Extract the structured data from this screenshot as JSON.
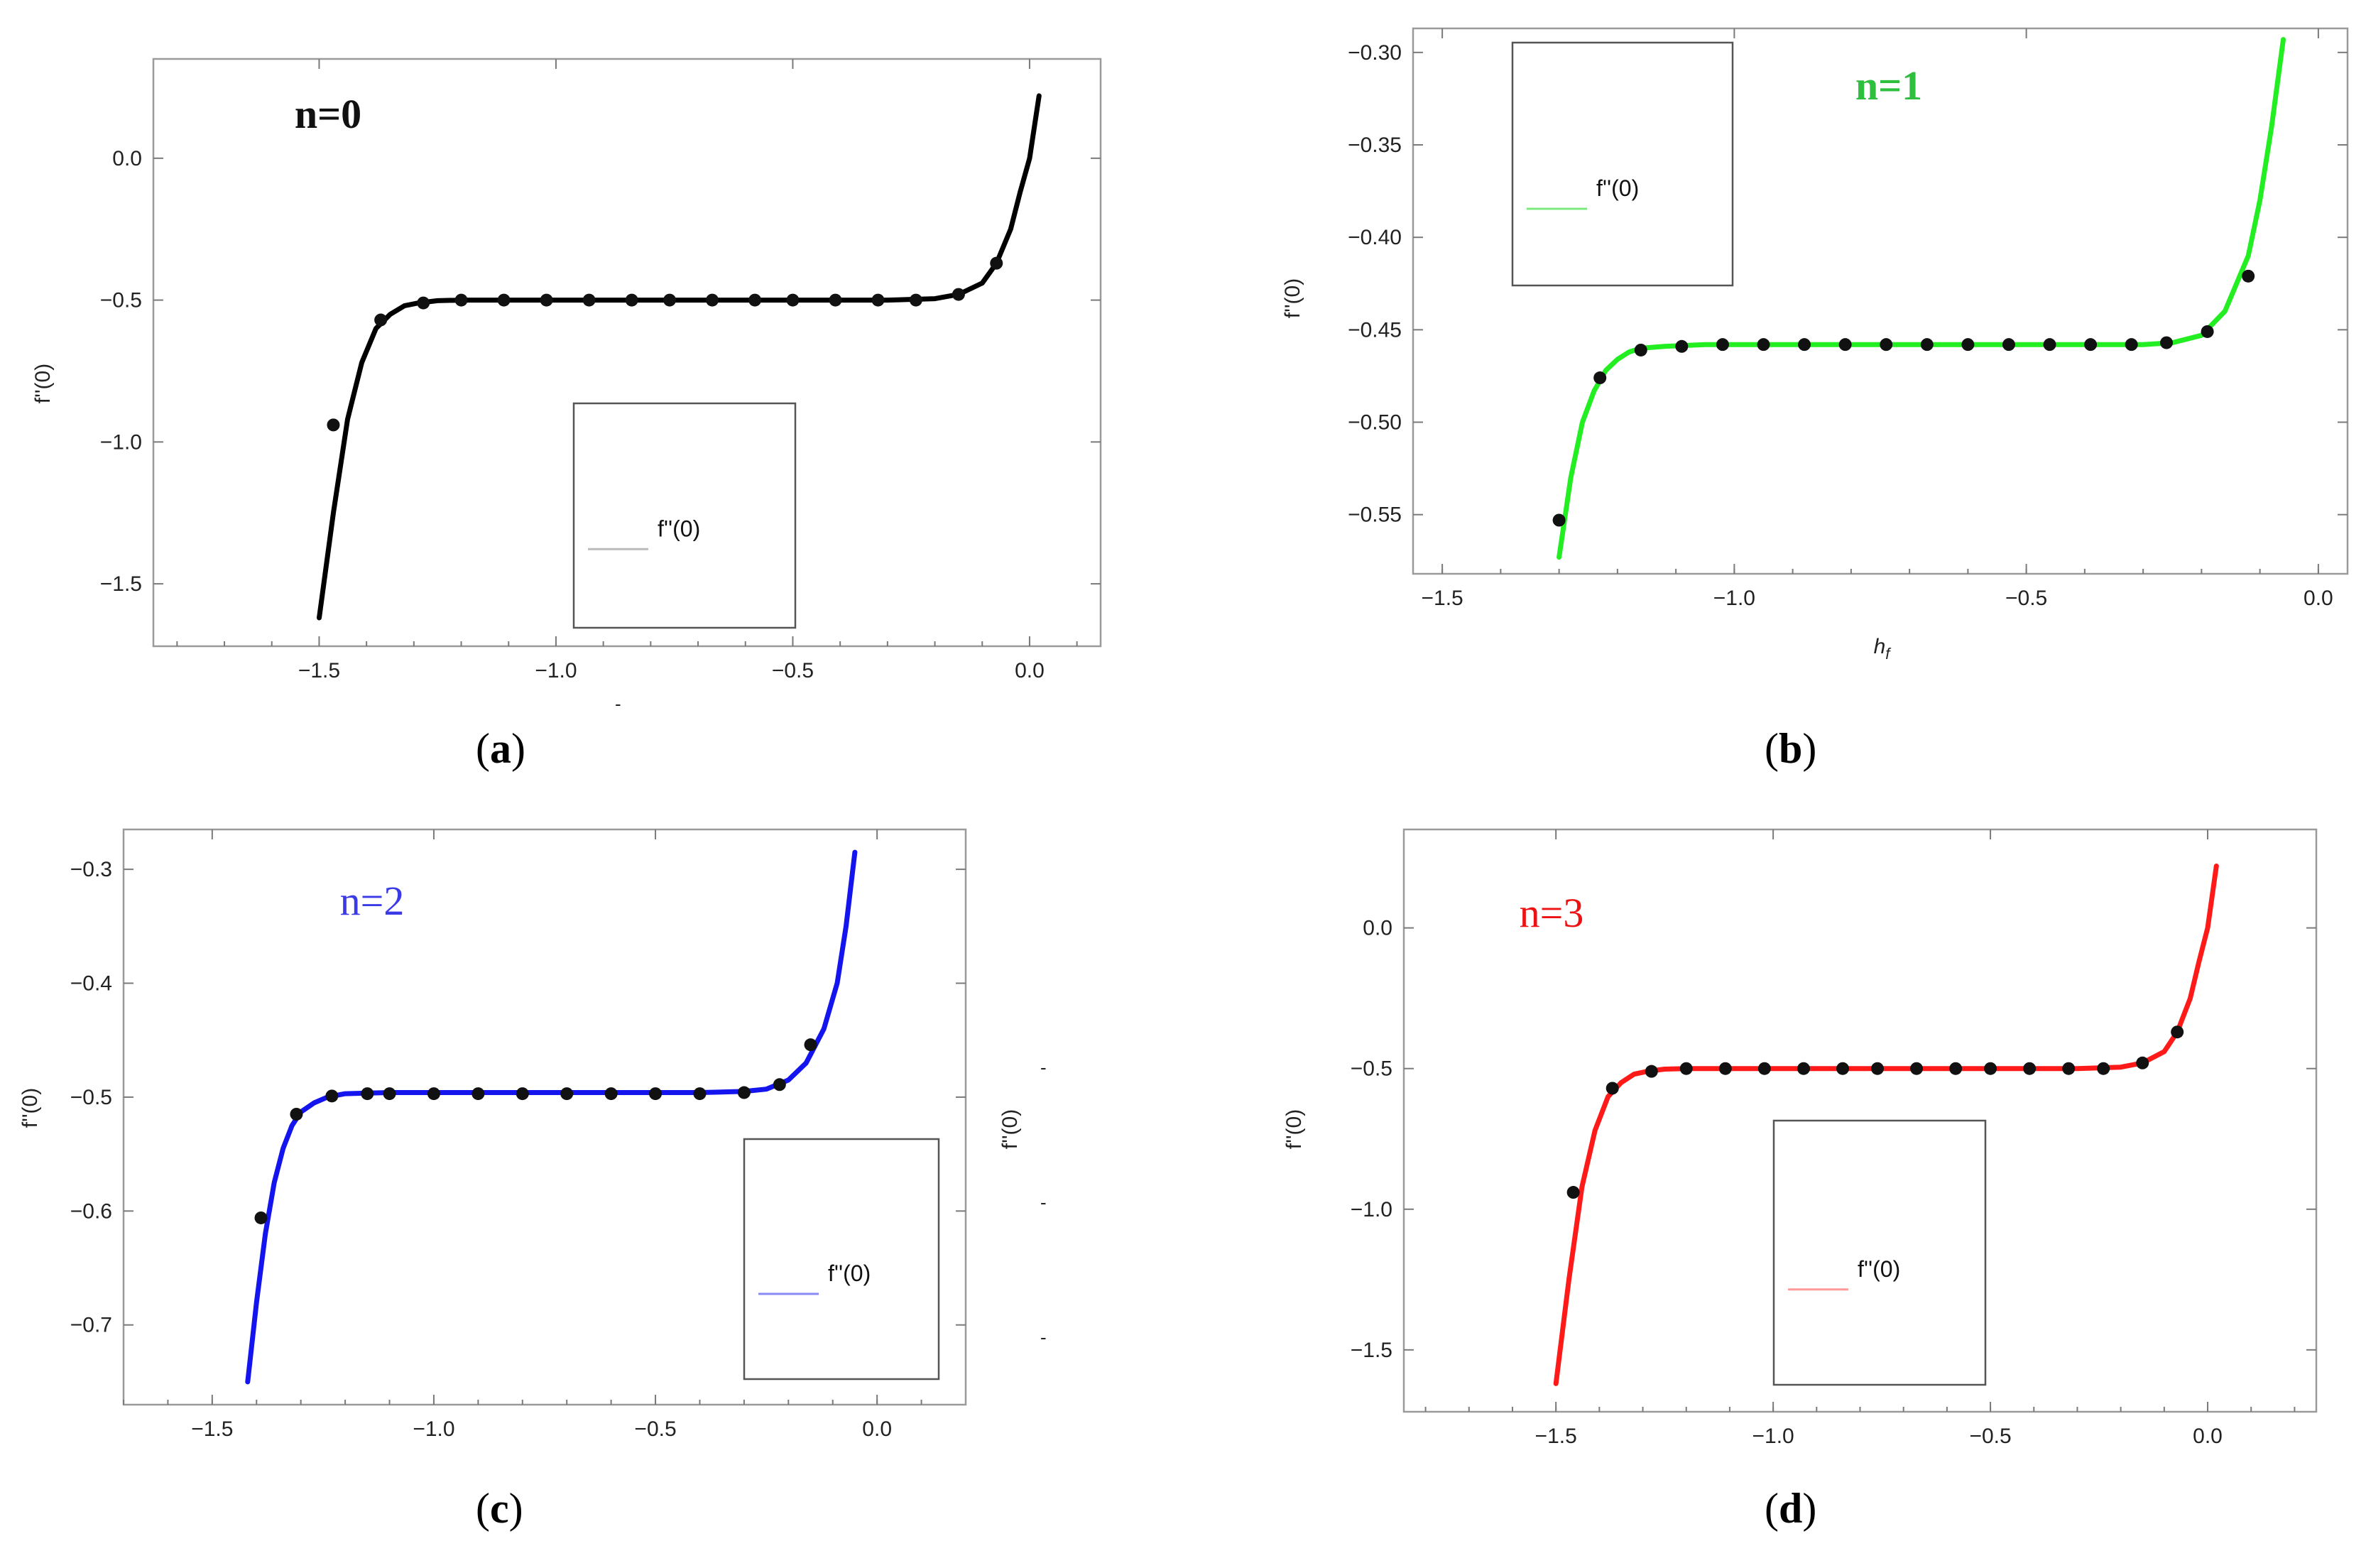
{
  "figure": {
    "captions": [
      "a",
      "b",
      "c",
      "d"
    ]
  },
  "chart_data": [
    {
      "id": "a",
      "type": "line",
      "annotation": "n=0",
      "annotation_color": "#111111",
      "line_color": "#000000",
      "series": [
        {
          "name": "f''(0)",
          "x": [
            -1.5,
            -1.47,
            -1.44,
            -1.41,
            -1.38,
            -1.35,
            -1.32,
            -1.29,
            -1.25,
            -1.2,
            -1.1,
            -1.0,
            -0.9,
            -0.8,
            -0.7,
            -0.6,
            -0.5,
            -0.4,
            -0.3,
            -0.2,
            -0.15,
            -0.1,
            -0.07,
            -0.04,
            -0.02,
            0.0,
            0.02
          ],
          "y": [
            -1.62,
            -1.25,
            -0.92,
            -0.72,
            -0.6,
            -0.55,
            -0.52,
            -0.51,
            -0.502,
            -0.5,
            -0.5,
            -0.5,
            -0.5,
            -0.5,
            -0.5,
            -0.5,
            -0.5,
            -0.5,
            -0.5,
            -0.495,
            -0.48,
            -0.44,
            -0.37,
            -0.25,
            -0.12,
            0.0,
            0.22
          ]
        }
      ],
      "markers": {
        "x": [
          -1.47,
          -1.37,
          -1.28,
          -1.2,
          -1.11,
          -1.02,
          -0.93,
          -0.84,
          -0.76,
          -0.67,
          -0.58,
          -0.5,
          -0.41,
          -0.32,
          -0.24,
          -0.15,
          -0.07
        ],
        "y": [
          -0.94,
          -0.57,
          -0.51,
          -0.5,
          -0.5,
          -0.5,
          -0.5,
          -0.5,
          -0.5,
          -0.5,
          -0.5,
          -0.5,
          -0.5,
          -0.5,
          -0.5,
          -0.48,
          -0.37
        ]
      },
      "xlim": [
        -1.85,
        0.15
      ],
      "ylim": [
        -1.72,
        0.35
      ],
      "xticks": [
        -1.5,
        -1.0,
        -0.5,
        0.0
      ],
      "xtick_labels": [
        "−1.5",
        "−1.0",
        "−0.5",
        "0.0"
      ],
      "yticks": [
        0.0,
        -0.5,
        -1.0,
        -1.5
      ],
      "ytick_labels": [
        "0.0",
        "−0.5",
        "−1.0",
        "−1.5"
      ],
      "xlabel": "",
      "ylabel": "f''(0)",
      "legend": {
        "label": "f''(0)",
        "color": "#bbbbbb",
        "placement": "lower-center"
      }
    },
    {
      "id": "b",
      "type": "line",
      "annotation": "n=1",
      "annotation_color": "#2fbf3f",
      "line_color": "#22ee22",
      "series": [
        {
          "name": "f''(0)",
          "x": [
            -1.3,
            -1.28,
            -1.26,
            -1.24,
            -1.22,
            -1.2,
            -1.18,
            -1.16,
            -1.12,
            -1.05,
            -1.0,
            -0.9,
            -0.8,
            -0.7,
            -0.6,
            -0.5,
            -0.4,
            -0.3,
            -0.25,
            -0.2,
            -0.16,
            -0.12,
            -0.1,
            -0.08,
            -0.06
          ],
          "y": [
            -0.573,
            -0.53,
            -0.5,
            -0.483,
            -0.472,
            -0.466,
            -0.462,
            -0.46,
            -0.459,
            -0.458,
            -0.458,
            -0.458,
            -0.458,
            -0.458,
            -0.458,
            -0.458,
            -0.458,
            -0.458,
            -0.457,
            -0.453,
            -0.44,
            -0.41,
            -0.38,
            -0.34,
            -0.293
          ]
        }
      ],
      "markers": {
        "x": [
          -1.3,
          -1.23,
          -1.16,
          -1.09,
          -1.02,
          -0.95,
          -0.88,
          -0.81,
          -0.74,
          -0.67,
          -0.6,
          -0.53,
          -0.46,
          -0.39,
          -0.32,
          -0.26,
          -0.19,
          -0.12
        ],
        "y": [
          -0.553,
          -0.476,
          -0.461,
          -0.459,
          -0.458,
          -0.458,
          -0.458,
          -0.458,
          -0.458,
          -0.458,
          -0.458,
          -0.458,
          -0.458,
          -0.458,
          -0.458,
          -0.457,
          -0.451,
          -0.421
        ]
      },
      "xlim": [
        -1.55,
        0.05
      ],
      "ylim": [
        -0.582,
        -0.287
      ],
      "xticks": [
        -1.5,
        -1.0,
        -0.5,
        0.0
      ],
      "xtick_labels": [
        "−1.5",
        "−1.0",
        "−0.5",
        "0.0"
      ],
      "yticks": [
        -0.3,
        -0.35,
        -0.4,
        -0.45,
        -0.5,
        -0.55
      ],
      "ytick_labels": [
        "−0.30",
        "−0.35",
        "−0.40",
        "−0.45",
        "−0.50",
        "−0.55"
      ],
      "xlabel": "h_f",
      "ylabel": "f''(0)",
      "legend": {
        "label": "f''(0)",
        "color": "#7de87d",
        "placement": "top-left"
      }
    },
    {
      "id": "c",
      "type": "line",
      "annotation": "n=2",
      "annotation_color": "#3a3ae6",
      "line_color": "#1414ee",
      "series": [
        {
          "name": "f''(0)",
          "x": [
            -1.42,
            -1.4,
            -1.38,
            -1.36,
            -1.34,
            -1.32,
            -1.3,
            -1.27,
            -1.24,
            -1.2,
            -1.1,
            -1.0,
            -0.9,
            -0.8,
            -0.7,
            -0.6,
            -0.5,
            -0.4,
            -0.3,
            -0.25,
            -0.2,
            -0.16,
            -0.12,
            -0.09,
            -0.07,
            -0.05
          ],
          "y": [
            -0.75,
            -0.68,
            -0.62,
            -0.575,
            -0.545,
            -0.525,
            -0.513,
            -0.505,
            -0.5,
            -0.497,
            -0.496,
            -0.496,
            -0.496,
            -0.496,
            -0.496,
            -0.496,
            -0.496,
            -0.496,
            -0.495,
            -0.493,
            -0.485,
            -0.47,
            -0.44,
            -0.4,
            -0.35,
            -0.285
          ]
        }
      ],
      "markers": {
        "x": [
          -1.39,
          -1.31,
          -1.23,
          -1.15,
          -1.1,
          -1.0,
          -0.9,
          -0.8,
          -0.7,
          -0.6,
          -0.5,
          -0.4,
          -0.3,
          -0.22,
          -0.15
        ],
        "y": [
          -0.606,
          -0.515,
          -0.499,
          -0.497,
          -0.497,
          -0.497,
          -0.497,
          -0.497,
          -0.497,
          -0.497,
          -0.497,
          -0.497,
          -0.496,
          -0.489,
          -0.454
        ]
      },
      "xlim": [
        -1.7,
        0.2
      ],
      "ylim": [
        -0.77,
        -0.265
      ],
      "xticks": [
        -1.5,
        -1.0,
        -0.5,
        0.0
      ],
      "xtick_labels": [
        "−1.5",
        "−1.0",
        "−0.5",
        "0.0"
      ],
      "yticks": [
        -0.3,
        -0.4,
        -0.5,
        -0.6,
        -0.7
      ],
      "ytick_labels": [
        "−0.3",
        "−0.4",
        "−0.5",
        "−0.6",
        "−0.7"
      ],
      "xlabel": "",
      "ylabel": "f''(0)",
      "legend": {
        "label": "f''(0)",
        "color": "#8a8af5",
        "placement": "lower-right"
      }
    },
    {
      "id": "d",
      "type": "line",
      "annotation": "n=3",
      "annotation_color": "#ee1111",
      "line_color": "#ff1a1a",
      "series": [
        {
          "name": "f''(0)",
          "x": [
            -1.5,
            -1.47,
            -1.44,
            -1.41,
            -1.38,
            -1.35,
            -1.32,
            -1.29,
            -1.25,
            -1.2,
            -1.1,
            -1.0,
            -0.9,
            -0.8,
            -0.7,
            -0.6,
            -0.5,
            -0.4,
            -0.3,
            -0.2,
            -0.15,
            -0.1,
            -0.07,
            -0.04,
            -0.02,
            0.0,
            0.02
          ],
          "y": [
            -1.62,
            -1.25,
            -0.92,
            -0.72,
            -0.6,
            -0.55,
            -0.52,
            -0.51,
            -0.502,
            -0.5,
            -0.5,
            -0.5,
            -0.5,
            -0.5,
            -0.5,
            -0.5,
            -0.5,
            -0.5,
            -0.5,
            -0.495,
            -0.48,
            -0.44,
            -0.37,
            -0.25,
            -0.12,
            0.0,
            0.22
          ]
        }
      ],
      "markers": {
        "x": [
          -1.46,
          -1.37,
          -1.28,
          -1.2,
          -1.11,
          -1.02,
          -0.93,
          -0.84,
          -0.76,
          -0.67,
          -0.58,
          -0.5,
          -0.41,
          -0.32,
          -0.24,
          -0.15,
          -0.07
        ],
        "y": [
          -0.94,
          -0.57,
          -0.51,
          -0.5,
          -0.5,
          -0.5,
          -0.5,
          -0.5,
          -0.5,
          -0.5,
          -0.5,
          -0.5,
          -0.5,
          -0.5,
          -0.5,
          -0.48,
          -0.37
        ]
      },
      "xlim": [
        -1.85,
        0.25
      ],
      "ylim": [
        -1.72,
        0.35
      ],
      "xticks": [
        -1.5,
        -1.0,
        -0.5,
        0.0
      ],
      "xtick_labels": [
        "−1.5",
        "−1.0",
        "−0.5",
        "0.0"
      ],
      "yticks": [
        0.0,
        -0.5,
        -1.0,
        -1.5
      ],
      "ytick_labels": [
        "0.0",
        "−0.5",
        "−1.0",
        "−1.5"
      ],
      "xlabel": "",
      "ylabel": "f''(0)",
      "legend": {
        "label": "f''(0)",
        "color": "#ff9a9a",
        "placement": "lower-center"
      }
    }
  ]
}
